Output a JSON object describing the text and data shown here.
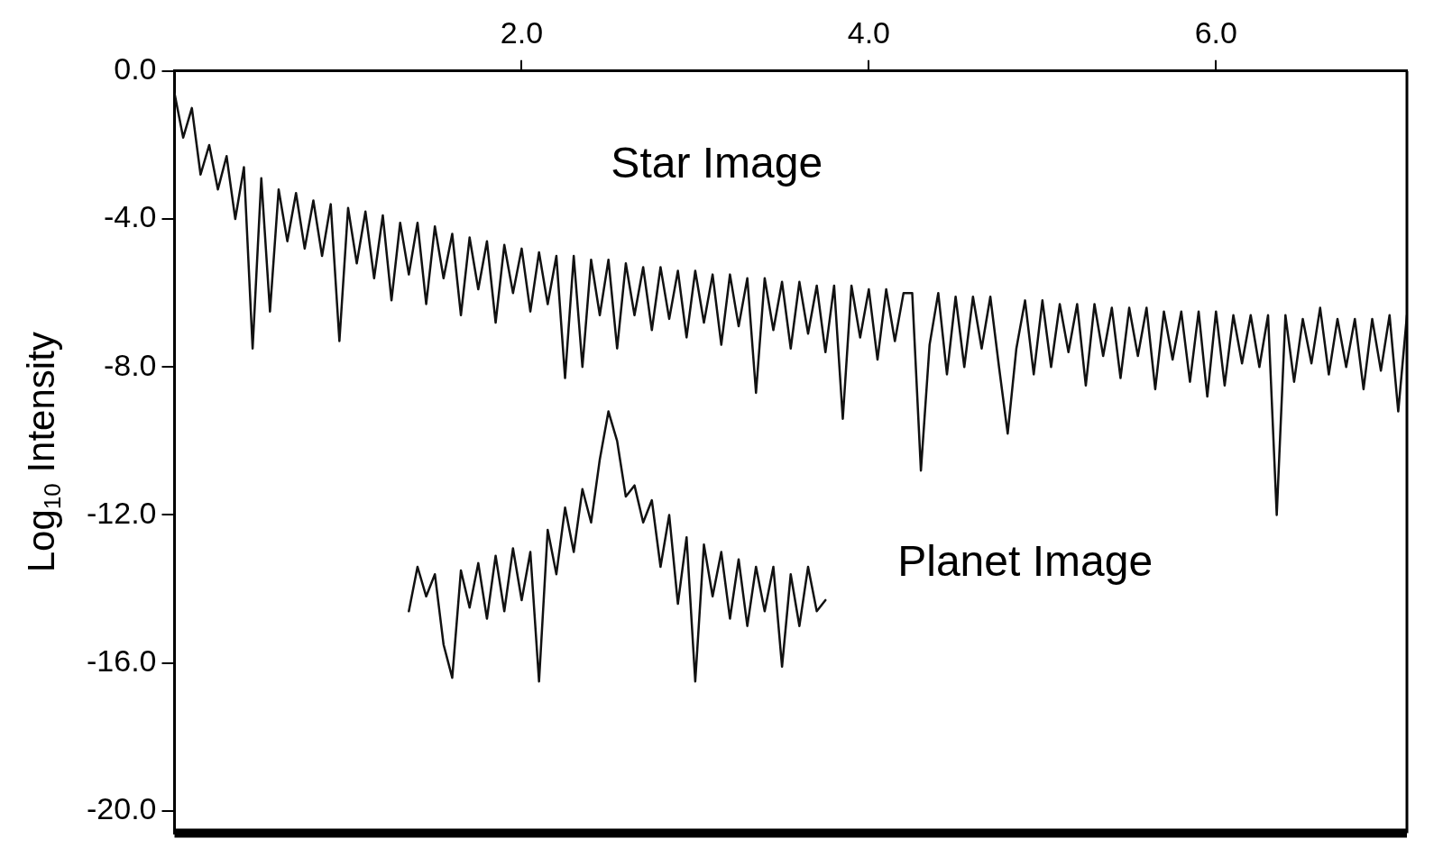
{
  "chart_data": {
    "type": "line",
    "ylabel": "Log$_{10}$ Intensity",
    "xlim": [
      0,
      7.1
    ],
    "ylim": [
      -20.6,
      0
    ],
    "xticks": [
      {
        "value": 2,
        "label": "2.0"
      },
      {
        "value": 4,
        "label": "4.0"
      },
      {
        "value": 6,
        "label": "6.0"
      }
    ],
    "yticks": [
      {
        "value": 0,
        "label": "0.0"
      },
      {
        "value": -4,
        "label": "-4.0"
      },
      {
        "value": -8,
        "label": "-8.0"
      },
      {
        "value": -12,
        "label": "-12.0"
      },
      {
        "value": -16,
        "label": "-16.0"
      },
      {
        "value": -20,
        "label": "-20.0"
      }
    ],
    "grid": false,
    "legend": false,
    "marker": "none",
    "line_style": "solid",
    "series": [
      {
        "name": "Star Image",
        "color": "#111111",
        "x": [
          0.0,
          0.05,
          0.1,
          0.15,
          0.2,
          0.25,
          0.3,
          0.35,
          0.4,
          0.45,
          0.5,
          0.55,
          0.6,
          0.65,
          0.7,
          0.75,
          0.8,
          0.85,
          0.9,
          0.95,
          1.0,
          1.05,
          1.1,
          1.15,
          1.2,
          1.25,
          1.3,
          1.35,
          1.4,
          1.45,
          1.5,
          1.55,
          1.6,
          1.65,
          1.7,
          1.75,
          1.8,
          1.85,
          1.9,
          1.95,
          2.0,
          2.05,
          2.1,
          2.15,
          2.2,
          2.25,
          2.3,
          2.35,
          2.4,
          2.45,
          2.5,
          2.55,
          2.6,
          2.65,
          2.7,
          2.75,
          2.8,
          2.85,
          2.9,
          2.95,
          3.0,
          3.05,
          3.1,
          3.15,
          3.2,
          3.25,
          3.3,
          3.35,
          3.4,
          3.45,
          3.5,
          3.55,
          3.6,
          3.65,
          3.7,
          3.75,
          3.8,
          3.85,
          3.9,
          3.95,
          4.0,
          4.05,
          4.1,
          4.15,
          4.2,
          4.25,
          4.3,
          4.35,
          4.4,
          4.45,
          4.5,
          4.55,
          4.6,
          4.65,
          4.7,
          4.75,
          4.8,
          4.85,
          4.9,
          4.95,
          5.0,
          5.05,
          5.1,
          5.15,
          5.2,
          5.25,
          5.3,
          5.35,
          5.4,
          5.45,
          5.5,
          5.55,
          5.6,
          5.65,
          5.7,
          5.75,
          5.8,
          5.85,
          5.9,
          5.95,
          6.0,
          6.05,
          6.1,
          6.15,
          6.2,
          6.25,
          6.3,
          6.35,
          6.4,
          6.45,
          6.5,
          6.55,
          6.6,
          6.65,
          6.7,
          6.75,
          6.8,
          6.85,
          6.9,
          6.95,
          7.0,
          7.05,
          7.1
        ],
        "values": [
          -0.6,
          -1.8,
          -1.0,
          -2.8,
          -2.0,
          -3.2,
          -2.3,
          -4.0,
          -2.6,
          -7.5,
          -2.9,
          -6.5,
          -3.2,
          -4.6,
          -3.3,
          -4.8,
          -3.5,
          -5.0,
          -3.6,
          -7.3,
          -3.7,
          -5.2,
          -3.8,
          -5.6,
          -3.9,
          -6.2,
          -4.1,
          -5.5,
          -4.1,
          -6.3,
          -4.2,
          -5.6,
          -4.4,
          -6.6,
          -4.5,
          -5.9,
          -4.6,
          -6.8,
          -4.7,
          -6.0,
          -4.8,
          -6.5,
          -4.9,
          -6.3,
          -5.0,
          -8.3,
          -5.0,
          -8.0,
          -5.1,
          -6.6,
          -5.1,
          -7.5,
          -5.2,
          -6.6,
          -5.3,
          -7.0,
          -5.3,
          -6.7,
          -5.4,
          -7.2,
          -5.4,
          -6.8,
          -5.5,
          -7.4,
          -5.5,
          -6.9,
          -5.6,
          -8.7,
          -5.6,
          -7.0,
          -5.7,
          -7.5,
          -5.7,
          -7.1,
          -5.8,
          -7.6,
          -5.8,
          -9.4,
          -5.8,
          -7.2,
          -5.9,
          -7.8,
          -5.9,
          -7.3,
          -6.0,
          -6.0,
          -10.8,
          -7.4,
          -6.0,
          -8.2,
          -6.1,
          -8.0,
          -6.1,
          -7.5,
          -6.1,
          -8.0,
          -9.8,
          -7.5,
          -6.2,
          -8.2,
          -6.2,
          -8.0,
          -6.3,
          -7.6,
          -6.3,
          -8.5,
          -6.3,
          -7.7,
          -6.4,
          -8.3,
          -6.4,
          -7.7,
          -6.4,
          -8.6,
          -6.5,
          -7.8,
          -6.5,
          -8.4,
          -6.5,
          -8.8,
          -6.5,
          -8.5,
          -6.6,
          -7.9,
          -6.6,
          -8.0,
          -6.6,
          -12.0,
          -6.6,
          -8.4,
          -6.7,
          -7.9,
          -6.4,
          -8.2,
          -6.7,
          -8.0,
          -6.7,
          -8.6,
          -6.7,
          -8.1,
          -6.6,
          -9.2,
          -6.6
        ]
      },
      {
        "name": "Planet Image",
        "color": "#111111",
        "x": [
          1.35,
          1.4,
          1.45,
          1.5,
          1.55,
          1.6,
          1.65,
          1.7,
          1.75,
          1.8,
          1.85,
          1.9,
          1.95,
          2.0,
          2.05,
          2.1,
          2.15,
          2.2,
          2.25,
          2.3,
          2.35,
          2.4,
          2.45,
          2.5,
          2.55,
          2.6,
          2.65,
          2.7,
          2.75,
          2.8,
          2.85,
          2.9,
          2.95,
          3.0,
          3.05,
          3.1,
          3.15,
          3.2,
          3.25,
          3.3,
          3.35,
          3.4,
          3.45,
          3.5,
          3.55,
          3.6,
          3.65,
          3.7,
          3.75
        ],
        "values": [
          -14.6,
          -13.4,
          -14.2,
          -13.6,
          -15.5,
          -16.4,
          -13.5,
          -14.5,
          -13.3,
          -14.8,
          -13.1,
          -14.6,
          -12.9,
          -14.3,
          -13.0,
          -16.5,
          -12.4,
          -13.6,
          -11.8,
          -13.0,
          -11.3,
          -12.2,
          -10.5,
          -9.2,
          -10.0,
          -11.5,
          -11.2,
          -12.2,
          -11.6,
          -13.4,
          -12.0,
          -14.4,
          -12.6,
          -16.5,
          -12.8,
          -14.2,
          -13.0,
          -14.8,
          -13.2,
          -15.0,
          -13.4,
          -14.6,
          -13.4,
          -16.1,
          -13.6,
          -15.0,
          -13.4,
          -14.6,
          -14.3
        ]
      }
    ]
  }
}
